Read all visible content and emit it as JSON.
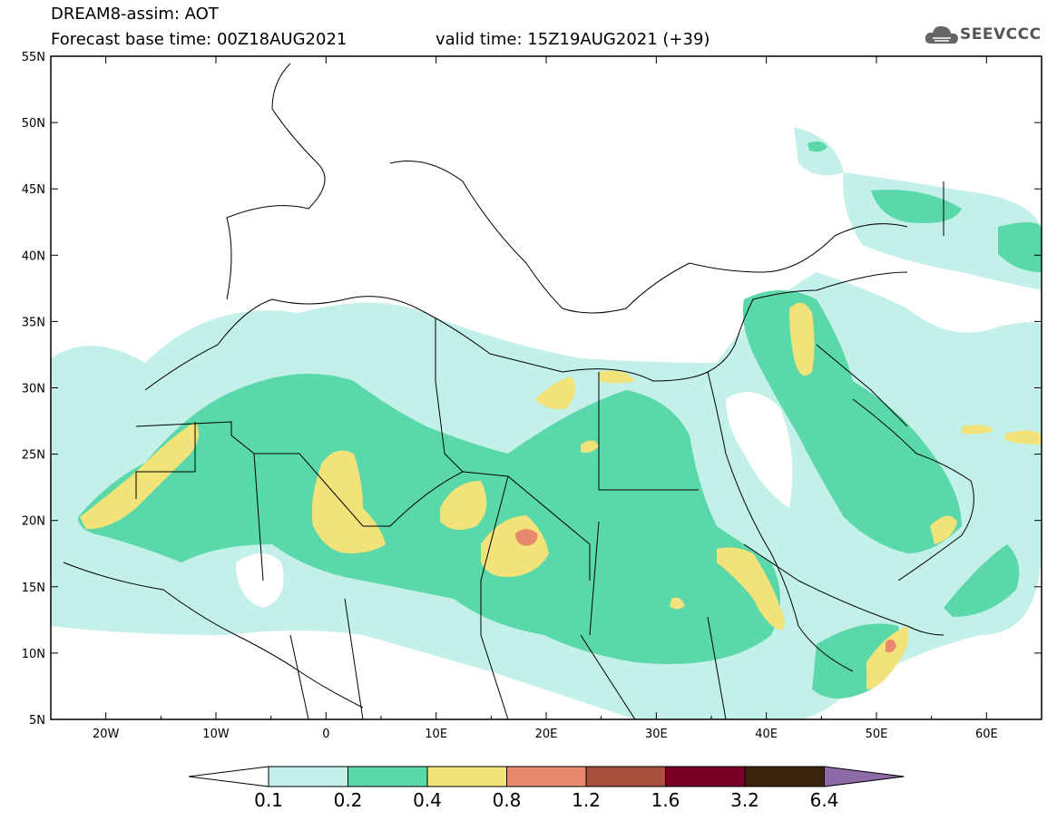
{
  "header": {
    "line1": "DREAM8-assim: AOT",
    "line2": "Forecast base time: 00Z18AUG2021",
    "line3": "valid time: 15Z19AUG2021 (+39)"
  },
  "logo": {
    "text": "SEEVCCC",
    "icon": "cloud-icon"
  },
  "map": {
    "lat_labels": [
      "55N",
      "50N",
      "45N",
      "40N",
      "35N",
      "30N",
      "25N",
      "20N",
      "15N",
      "10N",
      "5N"
    ],
    "lon_labels": [
      "20W",
      "10W",
      "0",
      "10E",
      "20E",
      "30E",
      "40E",
      "50E",
      "60E"
    ],
    "lon_range": [
      -25,
      65
    ],
    "lat_range": [
      5,
      55
    ],
    "variable": "AOT"
  },
  "legend": {
    "levels": [
      "0.1",
      "0.2",
      "0.4",
      "0.8",
      "1.2",
      "1.6",
      "3.2",
      "6.4"
    ],
    "colors": [
      "#ffffff",
      "#c3f0e9",
      "#5ad8a9",
      "#f2e27a",
      "#e7896a",
      "#a94f3d",
      "#7a0026",
      "#3a2410",
      "#8e6aa8"
    ]
  }
}
